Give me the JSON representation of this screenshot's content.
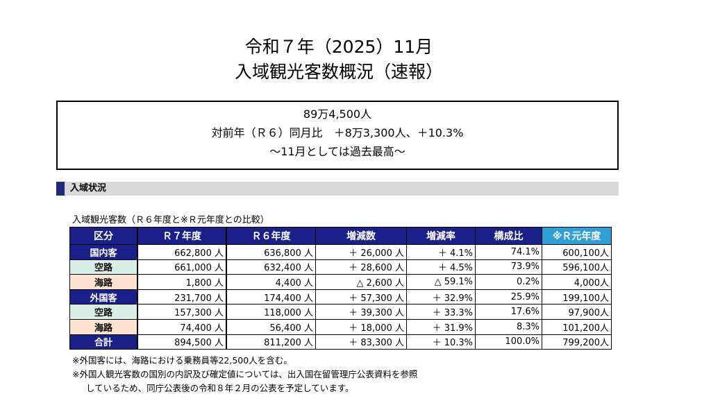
{
  "header": {
    "title_line1": "令和７年（2025）11月",
    "title_line2": "入域観光客数概況（速報）"
  },
  "summary": {
    "line1": "89万4,500人",
    "line2": "対前年（Ｒ６）同月比　＋8万3,300人、＋10.3%",
    "line3": "～11月としては過去最高～"
  },
  "section": {
    "title": "入域状況"
  },
  "table": {
    "caption": "入域観光客数（Ｒ６年度と※Ｒ元年度との比較）",
    "columns": [
      "区分",
      "Ｒ７年度",
      "Ｒ６年度",
      "増減数",
      "増減率",
      "構成比",
      "※Ｒ元年度"
    ],
    "rows": [
      [
        "国内客",
        "662,800 人",
        "636,800 人",
        "＋ 26,000 人",
        "＋ 4.1%",
        "74.1%",
        "600,100人"
      ],
      [
        "空路",
        "661,000 人",
        "632,400 人",
        "＋ 28,600 人",
        "＋ 4.5%",
        "73.9%",
        "596,100人"
      ],
      [
        "海路",
        "1,800 人",
        "4,400 人",
        "△ 2,600 人",
        "△ 59.1%",
        "0.2%",
        "4,000人"
      ],
      [
        "外国客",
        "231,700 人",
        "174,400 人",
        "＋ 57,300 人",
        "＋ 32.9%",
        "25.9%",
        "199,100人"
      ],
      [
        "空路",
        "157,300 人",
        "118,000 人",
        "＋ 39,300 人",
        "＋ 33.3%",
        "17.6%",
        "97,900人"
      ],
      [
        "海路",
        "74,400 人",
        "56,400 人",
        "＋ 18,000 人",
        "＋ 31.9%",
        "8.3%",
        "101,200人"
      ],
      [
        "合計",
        "894,500 人",
        "811,200 人",
        "＋ 83,300 人",
        "＋ 10.3%",
        "100.0%",
        "799,200人"
      ]
    ]
  },
  "notes": [
    "※外国客には、海路における乗務員等22,500人を含む。",
    "※外国人観光客数の国別の内訳及び確定値については、出入国在留管理庁公表資料を参照",
    "しているため、同庁公表後の令和８年２月の公表を予定しています。"
  ]
}
